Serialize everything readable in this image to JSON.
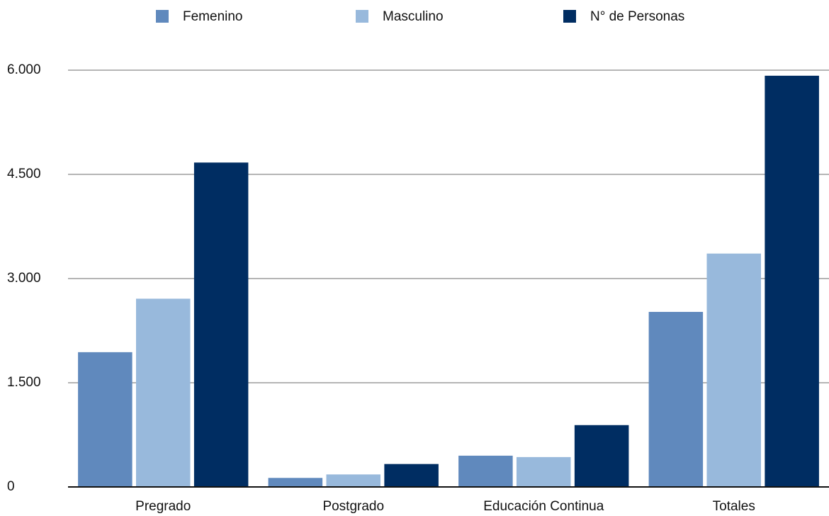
{
  "chart_data": {
    "type": "bar",
    "categories": [
      "Pregrado",
      "Postgrado",
      "Educación Continua",
      "Totales"
    ],
    "series": [
      {
        "name": "Femenino",
        "color": "#6089bd",
        "values": [
          1940,
          130,
          450,
          2520
        ]
      },
      {
        "name": "Masculino",
        "color": "#98b9dc",
        "values": [
          2710,
          180,
          430,
          3360
        ]
      },
      {
        "name": "N° de Personas",
        "color": "#002d62",
        "values": [
          4670,
          330,
          890,
          5920
        ]
      }
    ],
    "ylim": [
      0,
      6000
    ],
    "yticks": [
      0,
      {
        "value": 1500,
        "label": "1.500"
      },
      {
        "value": 3000,
        "label": "3.000"
      },
      {
        "value": 4500,
        "label": "4.500"
      },
      {
        "value": 6000,
        "label": "6.000"
      }
    ],
    "grid": true,
    "legend": "top"
  }
}
